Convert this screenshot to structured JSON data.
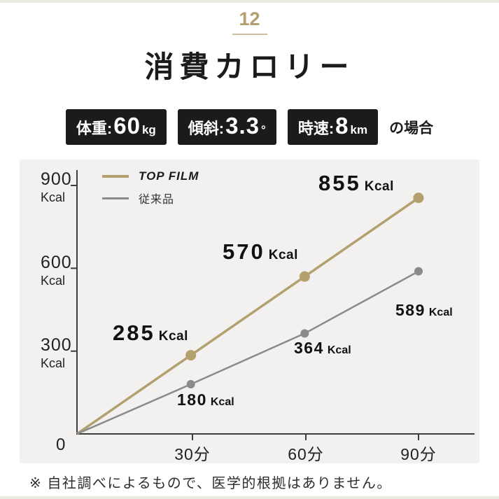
{
  "page": {
    "step_number": "12",
    "title": "消費カロリー",
    "note": "※ 自社調べによるもので、医学的根拠はありません。"
  },
  "conditions": {
    "badges": [
      {
        "label": "体重:",
        "value": "60",
        "unit": "kg"
      },
      {
        "label": "傾斜:",
        "value": "3.3",
        "unit": "°"
      },
      {
        "label": "時速:",
        "value": "8",
        "unit": "km"
      }
    ],
    "suffix": "の場合"
  },
  "colors": {
    "brand_gold": "#b3a06f",
    "conventional_gray": "#8a8a8a",
    "badge_black": "#1b1b1b",
    "panel_bg": "#f2f1ef"
  },
  "chart_data": {
    "type": "line",
    "title": "消費カロリー",
    "x": [
      0,
      30,
      60,
      90
    ],
    "xlabel": "分",
    "x_tick_labels": [
      "30分",
      "60分",
      "90分"
    ],
    "ylabel": "Kcal",
    "y_unit": "Kcal",
    "y_tick_labels": [
      "900",
      "600",
      "300"
    ],
    "origin_label": "0",
    "ylim": [
      0,
      900
    ],
    "grid": false,
    "legend_position": "top-left",
    "series": [
      {
        "name": "TOP FILM",
        "color": "#b3a06f",
        "values": [
          0,
          285,
          570,
          855
        ],
        "point_labels": [
          "285",
          "570",
          "855"
        ]
      },
      {
        "name": "従来品",
        "color": "#8a8a8a",
        "values": [
          0,
          180,
          364,
          589
        ],
        "point_labels": [
          "180",
          "364",
          "589"
        ]
      }
    ]
  }
}
